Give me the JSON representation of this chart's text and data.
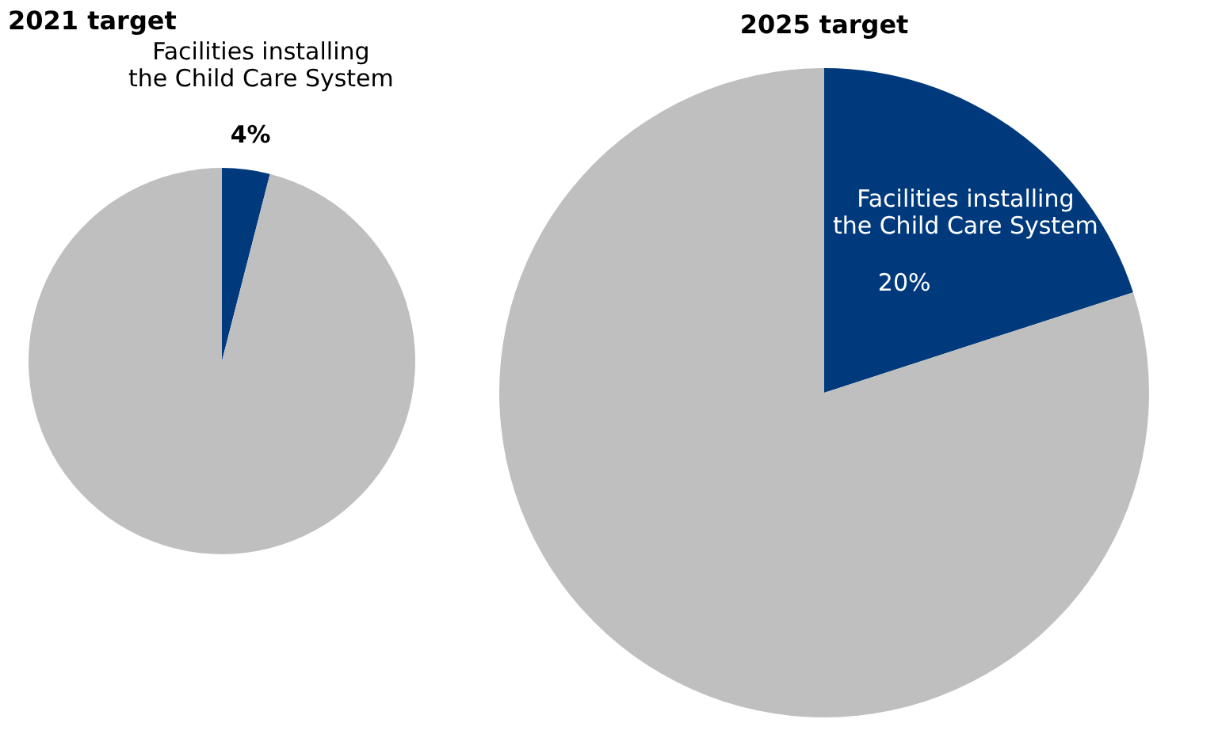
{
  "chart_data": [
    {
      "type": "pie",
      "title": "2021 target",
      "categories": [
        "Facilities installing the Child Care System",
        null
      ],
      "values": [
        4,
        96
      ],
      "colors": [
        "#003a7d",
        "#bfbfbf"
      ],
      "value_labels": [
        "4%",
        null
      ]
    },
    {
      "type": "pie",
      "title": "2025 target",
      "categories": [
        "Facilities installing the Child Care System",
        null
      ],
      "values": [
        20,
        80
      ],
      "colors": [
        "#003a7d",
        "#bfbfbf"
      ],
      "value_labels": [
        "20%",
        null
      ]
    }
  ]
}
